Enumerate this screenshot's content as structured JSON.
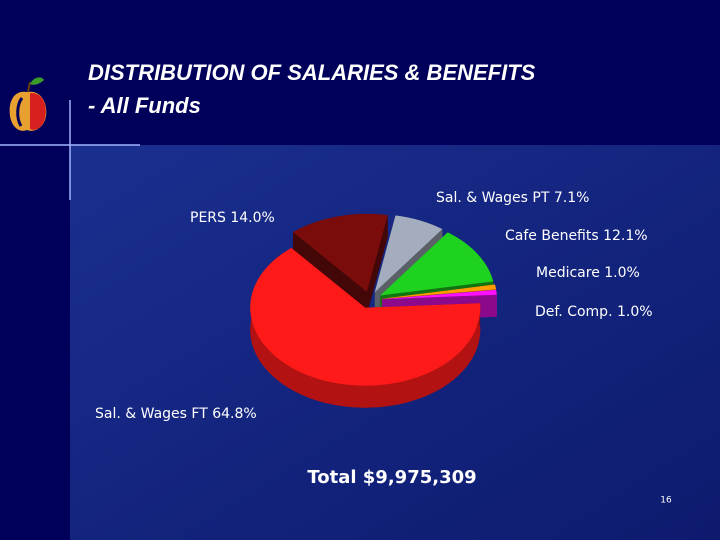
{
  "chart_data": {
    "type": "pie",
    "title": "DISTRIBUTION OF SALARIES & BENEFITS",
    "subtitle": "- All Funds",
    "categories": [
      "PERS",
      "Sal. & Wages PT",
      "Cafe Benefits",
      "Medicare",
      "Def. Comp.",
      "Sal. & Wages FT"
    ],
    "values": [
      14.0,
      7.1,
      12.1,
      1.0,
      1.0,
      64.8
    ],
    "value_labels": [
      "14.0%",
      "7.1%",
      "12.1%",
      "1.0%",
      "1.0%",
      "64.8%"
    ],
    "colors": [
      "#7a0c0c",
      "#a3adbd",
      "#1fd21f",
      "#ff9a00",
      "#ff10ff",
      "#ff1a1a"
    ],
    "total_label": "Total $9,975,309"
  },
  "slide_number": 16
}
